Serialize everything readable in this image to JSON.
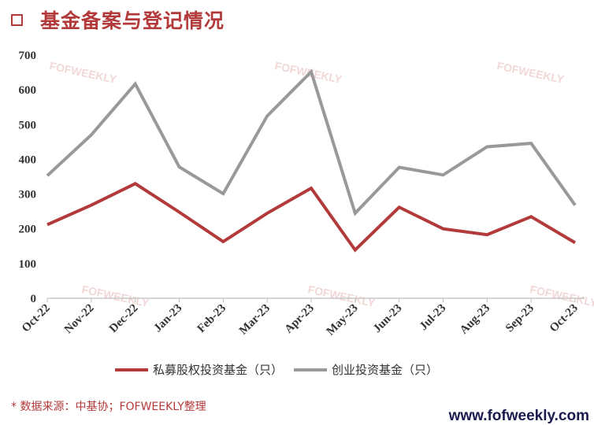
{
  "header": {
    "title": "基金备案与登记情况",
    "icon": "square-bullet-icon"
  },
  "watermark_text": "FOFWEEKLY",
  "colors": {
    "accent": "#b33a3a",
    "series1": "#b33a3a",
    "series2": "#999999"
  },
  "chart_data": {
    "type": "line",
    "title": "",
    "xlabel": "",
    "ylabel": "",
    "ylim": [
      0,
      700
    ],
    "yticks": [
      "0",
      "100",
      "200",
      "300",
      "400",
      "500",
      "600",
      "700"
    ],
    "grid": false,
    "legend_position": "bottom",
    "categories": [
      "Oct-22",
      "Nov-22",
      "Dec-22",
      "Jan-23",
      "Feb-23",
      "Mar-23",
      "Apr-23",
      "May-23",
      "Jun-23",
      "Jul-23",
      "Aug-23",
      "Sep-23",
      "Oct-23"
    ],
    "series": [
      {
        "name": "私募股权投资基金（只）",
        "color": "#b33a3a",
        "values": [
          212,
          268,
          330,
          248,
          163,
          245,
          317,
          139,
          262,
          200,
          183,
          235,
          160
        ]
      },
      {
        "name": "创业投资基金（只）",
        "color": "#999999",
        "values": [
          353,
          470,
          617,
          378,
          301,
          525,
          652,
          245,
          377,
          355,
          436,
          446,
          268
        ]
      }
    ]
  },
  "footer": {
    "source": "* 数据来源：中基协；FOFWEEKLY整理",
    "site": "www.fofweekly.com"
  }
}
